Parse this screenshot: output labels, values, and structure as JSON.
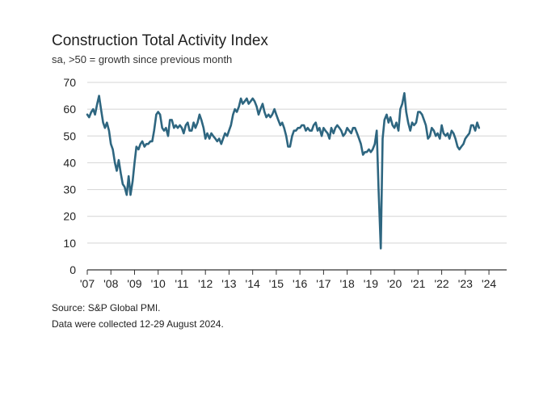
{
  "chart_data": {
    "type": "line",
    "title": "Construction Total Activity Index",
    "subtitle": "sa, >50 = growth since previous month",
    "ylim": [
      0,
      70
    ],
    "yticks": [
      0,
      10,
      20,
      30,
      40,
      50,
      60,
      70
    ],
    "xlim": [
      2007,
      2024.75
    ],
    "xticks": [
      {
        "x": 2007,
        "label": "'07"
      },
      {
        "x": 2008,
        "label": "'08"
      },
      {
        "x": 2009,
        "label": "'09"
      },
      {
        "x": 2010,
        "label": "'10"
      },
      {
        "x": 2011,
        "label": "'11"
      },
      {
        "x": 2012,
        "label": "'12"
      },
      {
        "x": 2013,
        "label": "'13"
      },
      {
        "x": 2014,
        "label": "'14"
      },
      {
        "x": 2015,
        "label": "'15"
      },
      {
        "x": 2016,
        "label": "'16"
      },
      {
        "x": 2017,
        "label": "'17"
      },
      {
        "x": 2018,
        "label": "'18"
      },
      {
        "x": 2019,
        "label": "'19"
      },
      {
        "x": 2020,
        "label": "'20"
      },
      {
        "x": 2021,
        "label": "'21"
      },
      {
        "x": 2022,
        "label": "'22"
      },
      {
        "x": 2023,
        "label": "'23"
      },
      {
        "x": 2024,
        "label": "'24"
      }
    ],
    "grid": true,
    "line_color": "#2e6680",
    "series": [
      {
        "points": [
          [
            2007.0,
            58
          ],
          [
            2007.08,
            57
          ],
          [
            2007.17,
            59
          ],
          [
            2007.25,
            60
          ],
          [
            2007.33,
            58
          ],
          [
            2007.42,
            62
          ],
          [
            2007.5,
            65
          ],
          [
            2007.58,
            60
          ],
          [
            2007.67,
            55
          ],
          [
            2007.75,
            53
          ],
          [
            2007.83,
            55
          ],
          [
            2007.92,
            52
          ],
          [
            2008.0,
            47
          ],
          [
            2008.08,
            45
          ],
          [
            2008.17,
            40
          ],
          [
            2008.25,
            37
          ],
          [
            2008.33,
            41
          ],
          [
            2008.42,
            36
          ],
          [
            2008.5,
            32
          ],
          [
            2008.58,
            31
          ],
          [
            2008.67,
            28
          ],
          [
            2008.75,
            35
          ],
          [
            2008.83,
            28
          ],
          [
            2008.92,
            33
          ],
          [
            2009.0,
            40
          ],
          [
            2009.08,
            46
          ],
          [
            2009.17,
            45
          ],
          [
            2009.25,
            47
          ],
          [
            2009.33,
            48
          ],
          [
            2009.42,
            46
          ],
          [
            2009.5,
            47
          ],
          [
            2009.58,
            47
          ],
          [
            2009.67,
            48
          ],
          [
            2009.75,
            48
          ],
          [
            2009.83,
            52
          ],
          [
            2009.92,
            58
          ],
          [
            2010.0,
            59
          ],
          [
            2010.08,
            58
          ],
          [
            2010.17,
            53
          ],
          [
            2010.25,
            52
          ],
          [
            2010.33,
            53
          ],
          [
            2010.42,
            50
          ],
          [
            2010.5,
            56
          ],
          [
            2010.58,
            56
          ],
          [
            2010.67,
            53
          ],
          [
            2010.75,
            54
          ],
          [
            2010.83,
            53
          ],
          [
            2010.92,
            54
          ],
          [
            2011.0,
            53
          ],
          [
            2011.08,
            51
          ],
          [
            2011.17,
            54
          ],
          [
            2011.25,
            55
          ],
          [
            2011.33,
            52
          ],
          [
            2011.42,
            52
          ],
          [
            2011.5,
            55
          ],
          [
            2011.58,
            53
          ],
          [
            2011.67,
            55
          ],
          [
            2011.75,
            58
          ],
          [
            2011.83,
            56
          ],
          [
            2011.92,
            53
          ],
          [
            2012.0,
            49
          ],
          [
            2012.08,
            51
          ],
          [
            2012.17,
            49
          ],
          [
            2012.25,
            51
          ],
          [
            2012.33,
            50
          ],
          [
            2012.42,
            49
          ],
          [
            2012.5,
            48
          ],
          [
            2012.58,
            49
          ],
          [
            2012.67,
            47
          ],
          [
            2012.75,
            49
          ],
          [
            2012.83,
            51
          ],
          [
            2012.92,
            50
          ],
          [
            2013.0,
            52
          ],
          [
            2013.08,
            54
          ],
          [
            2013.17,
            58
          ],
          [
            2013.25,
            60
          ],
          [
            2013.33,
            59
          ],
          [
            2013.42,
            61
          ],
          [
            2013.5,
            64
          ],
          [
            2013.58,
            62
          ],
          [
            2013.67,
            63
          ],
          [
            2013.75,
            64
          ],
          [
            2013.83,
            62
          ],
          [
            2013.92,
            63
          ],
          [
            2014.0,
            64
          ],
          [
            2014.08,
            63
          ],
          [
            2014.17,
            61
          ],
          [
            2014.25,
            58
          ],
          [
            2014.33,
            60
          ],
          [
            2014.42,
            62
          ],
          [
            2014.5,
            59
          ],
          [
            2014.58,
            57
          ],
          [
            2014.67,
            58
          ],
          [
            2014.75,
            57
          ],
          [
            2014.83,
            58
          ],
          [
            2014.92,
            60
          ],
          [
            2015.0,
            58
          ],
          [
            2015.08,
            56
          ],
          [
            2015.17,
            54
          ],
          [
            2015.25,
            55
          ],
          [
            2015.33,
            53
          ],
          [
            2015.42,
            50
          ],
          [
            2015.5,
            46
          ],
          [
            2015.58,
            46
          ],
          [
            2015.67,
            50
          ],
          [
            2015.75,
            52
          ],
          [
            2015.83,
            52
          ],
          [
            2015.92,
            53
          ],
          [
            2016.0,
            53
          ],
          [
            2016.08,
            54
          ],
          [
            2016.17,
            54
          ],
          [
            2016.25,
            52
          ],
          [
            2016.33,
            53
          ],
          [
            2016.42,
            52
          ],
          [
            2016.5,
            52
          ],
          [
            2016.58,
            54
          ],
          [
            2016.67,
            55
          ],
          [
            2016.75,
            52
          ],
          [
            2016.83,
            53
          ],
          [
            2016.92,
            50
          ],
          [
            2017.0,
            53
          ],
          [
            2017.08,
            52
          ],
          [
            2017.17,
            51
          ],
          [
            2017.25,
            49
          ],
          [
            2017.33,
            53
          ],
          [
            2017.42,
            51
          ],
          [
            2017.5,
            53
          ],
          [
            2017.58,
            54
          ],
          [
            2017.67,
            53
          ],
          [
            2017.75,
            52
          ],
          [
            2017.83,
            50
          ],
          [
            2017.92,
            51
          ],
          [
            2018.0,
            53
          ],
          [
            2018.08,
            52
          ],
          [
            2018.17,
            51
          ],
          [
            2018.25,
            53
          ],
          [
            2018.33,
            53
          ],
          [
            2018.42,
            51
          ],
          [
            2018.5,
            49
          ],
          [
            2018.58,
            47
          ],
          [
            2018.67,
            43
          ],
          [
            2018.75,
            44
          ],
          [
            2018.83,
            44
          ],
          [
            2018.92,
            45
          ],
          [
            2019.0,
            44
          ],
          [
            2019.08,
            45
          ],
          [
            2019.17,
            47
          ],
          [
            2019.25,
            52
          ],
          [
            2019.33,
            30
          ],
          [
            2019.42,
            8
          ],
          [
            2019.5,
            49
          ],
          [
            2019.58,
            56
          ],
          [
            2019.67,
            58
          ],
          [
            2019.75,
            55
          ],
          [
            2019.83,
            57
          ],
          [
            2019.92,
            54
          ],
          [
            2020.0,
            53
          ],
          [
            2020.08,
            55
          ],
          [
            2020.17,
            52
          ],
          [
            2020.25,
            60
          ],
          [
            2020.33,
            62
          ],
          [
            2020.42,
            66
          ],
          [
            2020.5,
            59
          ],
          [
            2020.58,
            55
          ],
          [
            2020.67,
            52
          ],
          [
            2020.75,
            55
          ],
          [
            2020.83,
            54
          ],
          [
            2020.92,
            55
          ],
          [
            2021.0,
            59
          ],
          [
            2021.08,
            59
          ],
          [
            2021.17,
            58
          ],
          [
            2021.25,
            56
          ],
          [
            2021.33,
            54
          ],
          [
            2021.42,
            49
          ],
          [
            2021.5,
            50
          ],
          [
            2021.58,
            53
          ],
          [
            2021.67,
            52
          ],
          [
            2021.75,
            50
          ],
          [
            2021.83,
            51
          ],
          [
            2021.92,
            49
          ],
          [
            2022.0,
            54
          ],
          [
            2022.08,
            51
          ],
          [
            2022.17,
            50
          ],
          [
            2022.25,
            51
          ],
          [
            2022.33,
            49
          ],
          [
            2022.42,
            52
          ],
          [
            2022.5,
            51
          ],
          [
            2022.58,
            49
          ],
          [
            2022.67,
            46
          ],
          [
            2022.75,
            45
          ],
          [
            2022.83,
            46
          ],
          [
            2022.92,
            47
          ],
          [
            2023.0,
            49
          ],
          [
            2023.08,
            50
          ],
          [
            2023.17,
            51
          ],
          [
            2023.25,
            54
          ],
          [
            2023.33,
            54
          ],
          [
            2023.42,
            52
          ],
          [
            2023.5,
            55
          ],
          [
            2023.58,
            53
          ]
        ]
      }
    ],
    "footer": [
      "Source: S&P Global PMI.",
      "Data were collected 12-29 August 2024."
    ]
  }
}
